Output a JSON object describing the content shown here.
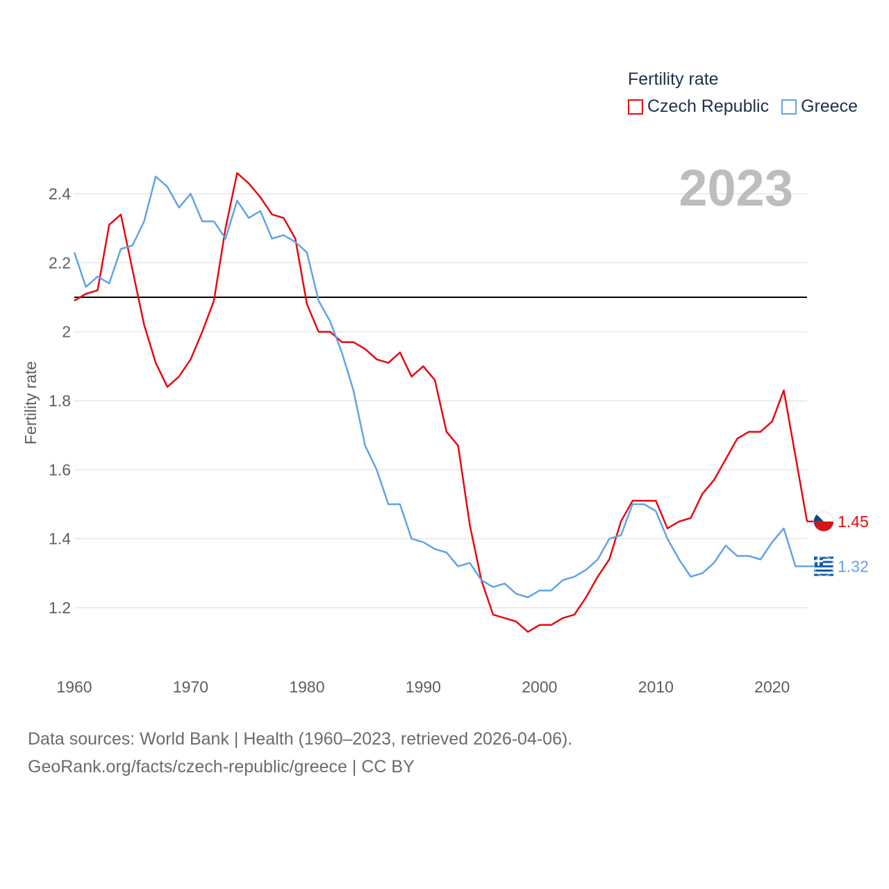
{
  "legend": {
    "title": "Fertility rate",
    "series": [
      {
        "name": "Czech Republic",
        "color": "#e8070f"
      },
      {
        "name": "Greece",
        "color": "#5fa3e6"
      }
    ]
  },
  "year_label": "2023",
  "footer": {
    "line1": "Data sources: World Bank | Health (1960–2023, retrieved 2026-04-06).",
    "line2": "GeoRank.org/facts/czech-republic/greece | CC BY"
  },
  "chart_data": {
    "type": "line",
    "title": "Fertility rate",
    "ylabel": "Fertility rate",
    "xlabel": "",
    "xlim": [
      1960,
      2023
    ],
    "ylim": [
      1.0,
      2.5
    ],
    "x_ticks": [
      1960,
      1970,
      1980,
      1990,
      2000,
      2010,
      2020
    ],
    "y_ticks": [
      1.2,
      1.4,
      1.6,
      1.8,
      2,
      2.2,
      2.4
    ],
    "reference_line": 2.1,
    "x": [
      1960,
      1961,
      1962,
      1963,
      1964,
      1965,
      1966,
      1967,
      1968,
      1969,
      1970,
      1971,
      1972,
      1973,
      1974,
      1975,
      1976,
      1977,
      1978,
      1979,
      1980,
      1981,
      1982,
      1983,
      1984,
      1985,
      1986,
      1987,
      1988,
      1989,
      1990,
      1991,
      1992,
      1993,
      1994,
      1995,
      1996,
      1997,
      1998,
      1999,
      2000,
      2001,
      2002,
      2003,
      2004,
      2005,
      2006,
      2007,
      2008,
      2009,
      2010,
      2011,
      2012,
      2013,
      2014,
      2015,
      2016,
      2017,
      2018,
      2019,
      2020,
      2021,
      2022,
      2023
    ],
    "series": [
      {
        "name": "Czech Republic",
        "color": "#e8070f",
        "end_label": "1.45",
        "values": [
          2.09,
          2.11,
          2.12,
          2.31,
          2.34,
          2.18,
          2.02,
          1.91,
          1.84,
          1.87,
          1.92,
          2.0,
          2.09,
          2.3,
          2.46,
          2.43,
          2.39,
          2.34,
          2.33,
          2.27,
          2.08,
          2.0,
          2.0,
          1.97,
          1.97,
          1.95,
          1.92,
          1.91,
          1.94,
          1.87,
          1.9,
          1.86,
          1.71,
          1.67,
          1.44,
          1.28,
          1.18,
          1.17,
          1.16,
          1.13,
          1.15,
          1.15,
          1.17,
          1.18,
          1.23,
          1.29,
          1.34,
          1.45,
          1.51,
          1.51,
          1.51,
          1.43,
          1.45,
          1.46,
          1.53,
          1.57,
          1.63,
          1.69,
          1.71,
          1.71,
          1.74,
          1.83,
          1.64,
          1.45
        ]
      },
      {
        "name": "Greece",
        "color": "#5fa3e6",
        "end_label": "1.32",
        "values": [
          2.23,
          2.13,
          2.16,
          2.14,
          2.24,
          2.25,
          2.32,
          2.45,
          2.42,
          2.36,
          2.4,
          2.32,
          2.32,
          2.27,
          2.38,
          2.33,
          2.35,
          2.27,
          2.28,
          2.26,
          2.23,
          2.09,
          2.03,
          1.94,
          1.83,
          1.67,
          1.6,
          1.5,
          1.5,
          1.4,
          1.39,
          1.37,
          1.36,
          1.32,
          1.33,
          1.28,
          1.26,
          1.27,
          1.24,
          1.23,
          1.25,
          1.25,
          1.28,
          1.29,
          1.31,
          1.34,
          1.4,
          1.41,
          1.5,
          1.5,
          1.48,
          1.4,
          1.34,
          1.29,
          1.3,
          1.33,
          1.38,
          1.35,
          1.35,
          1.34,
          1.39,
          1.43,
          1.32,
          1.32
        ]
      }
    ]
  }
}
